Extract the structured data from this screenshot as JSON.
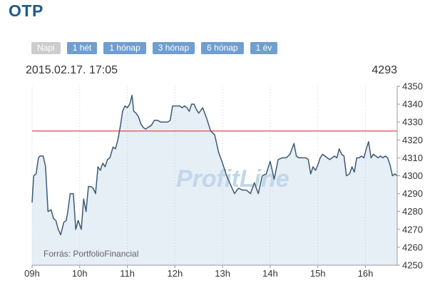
{
  "header": {
    "title": "OTP"
  },
  "tabs": [
    {
      "label": "Napi",
      "active": true
    },
    {
      "label": "1 hét",
      "active": false
    },
    {
      "label": "1 hónap",
      "active": false
    },
    {
      "label": "3 hónap",
      "active": false
    },
    {
      "label": "6 hónap",
      "active": false
    },
    {
      "label": "1 év",
      "active": false
    }
  ],
  "info": {
    "timestamp": "2015.02.17. 17:05",
    "last_value": "4293"
  },
  "watermark": "ProfitLine",
  "source": "Forrás: PortfolioFinancial",
  "colors": {
    "line": "#3d5a73",
    "area": "#e6eef6",
    "reference": "#e06666",
    "axis": "#999999",
    "title": "#1f5a8c",
    "tab": "#6f9ed1"
  },
  "chart_data": {
    "type": "line",
    "xlabel": "",
    "ylabel": "",
    "xlim": [
      "09:00",
      "16:40"
    ],
    "ylim": [
      4250,
      4350
    ],
    "reference_line": 4325,
    "x_ticks": [
      "09h",
      "10h",
      "11h",
      "12h",
      "13h",
      "14h",
      "15h",
      "16h"
    ],
    "y_ticks": [
      4250,
      4260,
      4270,
      4280,
      4290,
      4300,
      4310,
      4320,
      4330,
      4340,
      4350
    ],
    "series": [
      {
        "x": [
          "09:00",
          "09:02",
          "09:05",
          "09:08",
          "09:10",
          "09:14",
          "09:17",
          "09:20",
          "09:24",
          "09:27",
          "09:30",
          "09:33",
          "09:36",
          "09:40",
          "09:43",
          "09:45",
          "09:48",
          "09:52",
          "09:55",
          "09:58",
          "10:02",
          "10:05",
          "10:08",
          "10:11",
          "10:14",
          "10:17",
          "10:20",
          "10:23",
          "10:26",
          "10:29",
          "10:32",
          "10:35",
          "10:38",
          "10:42",
          "10:45",
          "10:48",
          "10:51",
          "10:54",
          "10:57",
          "11:00",
          "11:03",
          "11:06",
          "11:08",
          "11:11",
          "11:14",
          "11:17",
          "11:20",
          "11:23",
          "11:26",
          "11:30",
          "11:34",
          "11:38",
          "11:42",
          "11:45",
          "11:48",
          "11:51",
          "11:54",
          "11:57",
          "12:00",
          "12:03",
          "12:06",
          "12:09",
          "12:12",
          "12:15",
          "12:18",
          "12:21",
          "12:24",
          "12:27",
          "12:30",
          "12:35",
          "12:40",
          "12:45",
          "12:50",
          "12:55",
          "13:00",
          "13:05",
          "13:10",
          "13:15",
          "13:20",
          "13:25",
          "13:30",
          "13:35",
          "13:40",
          "13:45",
          "13:50",
          "13:55",
          "14:00",
          "14:05",
          "14:10",
          "14:15",
          "14:20",
          "14:25",
          "14:30",
          "14:33",
          "14:36",
          "14:39",
          "14:42",
          "14:45",
          "14:48",
          "14:51",
          "14:54",
          "14:57",
          "15:00",
          "15:03",
          "15:06",
          "15:09",
          "15:12",
          "15:15",
          "15:18",
          "15:21",
          "15:24",
          "15:27",
          "15:30",
          "15:33",
          "15:36",
          "15:40",
          "15:43",
          "15:46",
          "15:49",
          "15:52",
          "15:55",
          "15:58",
          "16:01",
          "16:04",
          "16:07",
          "16:10",
          "16:13",
          "16:16",
          "16:19",
          "16:22",
          "16:25",
          "16:28",
          "16:31",
          "16:34",
          "16:37",
          "16:40"
        ],
        "values": [
          4285,
          4300,
          4301,
          4310,
          4311,
          4311,
          4305,
          4280,
          4281,
          4276,
          4275,
          4270,
          4267,
          4274,
          4275,
          4280,
          4290,
          4290,
          4270,
          4275,
          4270,
          4287,
          4280,
          4294,
          4294,
          4293,
          4290,
          4305,
          4303,
          4307,
          4305,
          4309,
          4310,
          4316,
          4315,
          4320,
          4327,
          4336,
          4339,
          4338,
          4340,
          4345,
          4336,
          4335,
          4333,
          4329,
          4327,
          4326,
          4327,
          4328,
          4331,
          4331,
          4330,
          4330,
          4330,
          4330,
          4331,
          4339,
          4339,
          4339,
          4339,
          4338,
          4339,
          4338,
          4336,
          4340,
          4340,
          4337,
          4335,
          4338,
          4332,
          4325,
          4323,
          4313,
          4307,
          4300,
          4295,
          4290,
          4293,
          4292,
          4292,
          4290,
          4296,
          4290,
          4300,
          4301,
          4308,
          4298,
          4309,
          4310,
          4310,
          4312,
          4318,
          4311,
          4310,
          4310,
          4310,
          4310,
          4309,
          4301,
          4305,
          4303,
          4306,
          4310,
          4312,
          4311,
          4310,
          4309,
          4310,
          4311,
          4310,
          4315,
          4312,
          4311,
          4300,
          4301,
          4305,
          4302,
          4310,
          4310,
          4311,
          4310,
          4315,
          4319,
          4310,
          4312,
          4311,
          4310,
          4311,
          4310,
          4311,
          4310,
          4306,
          4300,
          4301,
          4300
        ]
      }
    ]
  }
}
